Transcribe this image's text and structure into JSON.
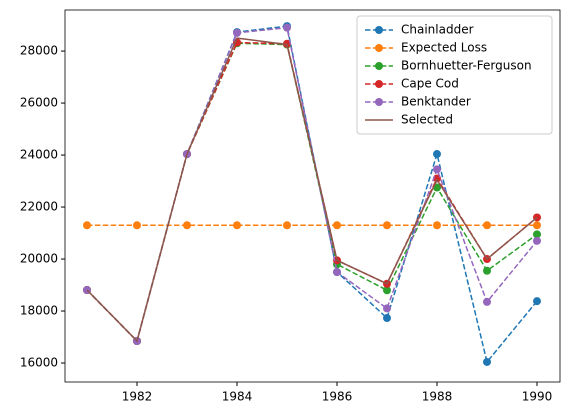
{
  "chart_data": {
    "type": "line",
    "x": [
      1981,
      1982,
      1983,
      1984,
      1985,
      1986,
      1987,
      1988,
      1989,
      1990
    ],
    "xlim": [
      1980.56,
      1990.46
    ],
    "xticks": [
      1982,
      1984,
      1986,
      1988,
      1990
    ],
    "ylim": [
      15270,
      29580
    ],
    "yticks": [
      16000,
      18000,
      20000,
      22000,
      24000,
      26000,
      28000
    ],
    "legend": "upper right",
    "grid": false,
    "series": [
      {
        "name": "Chainladder",
        "color": "#1f77b4",
        "style": "dashed",
        "marker": true,
        "values": [
          18808,
          16846,
          24038,
          28730,
          28960,
          19500,
          17730,
          24040,
          16040,
          18380
        ]
      },
      {
        "name": "Expected Loss",
        "color": "#ff7f0e",
        "style": "dashed",
        "marker": true,
        "values": [
          21300,
          21300,
          21300,
          21300,
          21300,
          21300,
          21300,
          21300,
          21300,
          21300
        ]
      },
      {
        "name": "Bornhuetter-Ferguson",
        "color": "#2ca02c",
        "style": "dashed",
        "marker": true,
        "values": [
          18808,
          16846,
          24038,
          28300,
          28250,
          19800,
          18800,
          22750,
          19550,
          20950
        ]
      },
      {
        "name": "Cape Cod",
        "color": "#d62728",
        "style": "dashed",
        "marker": true,
        "values": [
          18808,
          16846,
          24038,
          28330,
          28280,
          19950,
          19050,
          23100,
          20000,
          21600
        ]
      },
      {
        "name": "Benktander",
        "color": "#9467bd",
        "style": "dashed",
        "marker": true,
        "values": [
          18808,
          16846,
          24038,
          28700,
          28900,
          19500,
          18100,
          23450,
          18350,
          20700
        ]
      },
      {
        "name": "Selected",
        "color": "#8c564b",
        "style": "solid",
        "marker": false,
        "values": [
          18808,
          16846,
          24038,
          28500,
          28250,
          19950,
          19050,
          23050,
          20000,
          21600
        ]
      }
    ]
  }
}
